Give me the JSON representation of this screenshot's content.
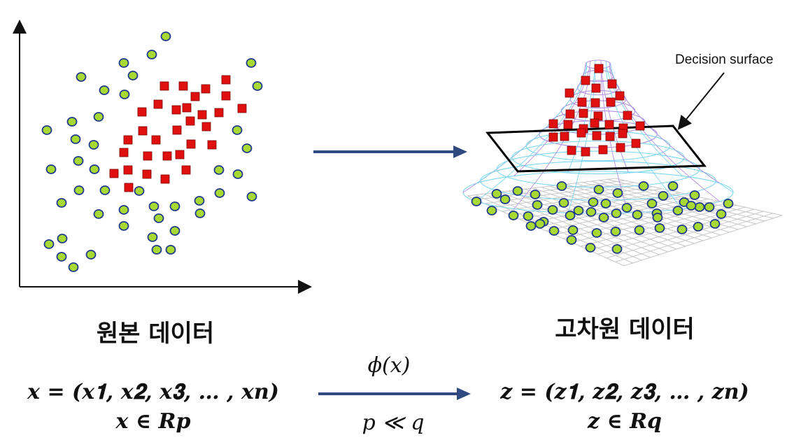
{
  "left": {
    "title": "원본 데이터",
    "formula": "𝒙 = (𝒙𝟏, 𝒙𝟐, 𝒙𝟑, … , 𝒙𝒏)",
    "space": "𝒙 ∈ 𝑹𝒑"
  },
  "right": {
    "title": "고차원 데이터",
    "formula": "𝒛 = (𝒛𝟏, 𝒛𝟐, 𝒛𝟑, … , 𝒛𝒏)",
    "space": "𝒛 ∈ 𝑹𝒒",
    "annotation": "Decision surface"
  },
  "mapping": {
    "function": "ϕ(𝑥)",
    "condition": "𝑝 ≪ 𝑞"
  },
  "colors": {
    "circle_fill": "#a8d933",
    "circle_stroke": "#1f3a8a",
    "square_fill": "#e01010",
    "square_stroke": "#7a0000",
    "arrow": "#2e4a7f",
    "surface_purple": "#b48fe0",
    "surface_cyan": "#7ed6ee",
    "grid": "#c8c8c8"
  }
}
